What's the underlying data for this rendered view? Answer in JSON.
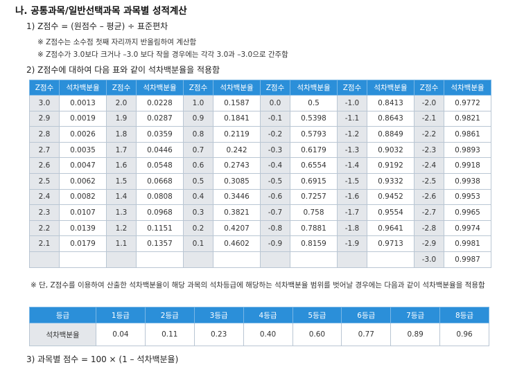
{
  "heading": "나. 공통과목/일반선택과목 과목별 성적계산",
  "formula": "1) Z점수 = (원점수 – 평균) ÷ 표준편차",
  "notes": [
    "※ Z점수는 소수점 첫째 자리까지 반올림하여 계산함",
    "※ Z점수가 3.0보다 크거나 –3.0 보다 작을 경우에는 각각 3.0과 –3.0으로 간주함"
  ],
  "subheading": "2) Z점수에 대하여 다음 표와 같이 석차백분율을 적용함",
  "ztable": {
    "z_header": "Z점수",
    "p_header": "석차백분율",
    "rows": [
      [
        "3.0",
        "0.0013",
        "2.0",
        "0.0228",
        "1.0",
        "0.1587",
        "0.0",
        "0.5",
        "-1.0",
        "0.8413",
        "-2.0",
        "0.9772"
      ],
      [
        "2.9",
        "0.0019",
        "1.9",
        "0.0287",
        "0.9",
        "0.1841",
        "-0.1",
        "0.5398",
        "-1.1",
        "0.8643",
        "-2.1",
        "0.9821"
      ],
      [
        "2.8",
        "0.0026",
        "1.8",
        "0.0359",
        "0.8",
        "0.2119",
        "-0.2",
        "0.5793",
        "-1.2",
        "0.8849",
        "-2.2",
        "0.9861"
      ],
      [
        "2.7",
        "0.0035",
        "1.7",
        "0.0446",
        "0.7",
        "0.242",
        "-0.3",
        "0.6179",
        "-1.3",
        "0.9032",
        "-2.3",
        "0.9893"
      ],
      [
        "2.6",
        "0.0047",
        "1.6",
        "0.0548",
        "0.6",
        "0.2743",
        "-0.4",
        "0.6554",
        "-1.4",
        "0.9192",
        "-2.4",
        "0.9918"
      ],
      [
        "2.5",
        "0.0062",
        "1.5",
        "0.0668",
        "0.5",
        "0.3085",
        "-0.5",
        "0.6915",
        "-1.5",
        "0.9332",
        "-2.5",
        "0.9938"
      ],
      [
        "2.4",
        "0.0082",
        "1.4",
        "0.0808",
        "0.4",
        "0.3446",
        "-0.6",
        "0.7257",
        "-1.6",
        "0.9452",
        "-2.6",
        "0.9953"
      ],
      [
        "2.3",
        "0.0107",
        "1.3",
        "0.0968",
        "0.3",
        "0.3821",
        "-0.7",
        "0.758",
        "-1.7",
        "0.9554",
        "-2.7",
        "0.9965"
      ],
      [
        "2.2",
        "0.0139",
        "1.2",
        "0.1151",
        "0.2",
        "0.4207",
        "-0.8",
        "0.7881",
        "-1.8",
        "0.9641",
        "-2.8",
        "0.9974"
      ],
      [
        "2.1",
        "0.0179",
        "1.1",
        "0.1357",
        "0.1",
        "0.4602",
        "-0.9",
        "0.8159",
        "-1.9",
        "0.9713",
        "-2.9",
        "0.9981"
      ],
      [
        "",
        "",
        "",
        "",
        "",
        "",
        "",
        "",
        "",
        "",
        "-3.0",
        "0.9987"
      ]
    ]
  },
  "note3": "※ 단, Z점수를 이용하여 산출한 석차백분율이 해당 과목의 석차등급에 해당하는 석차백분율 범위를 벗어날 경우에는 다음과 같이 석차백분율을 적용함",
  "grade_table": {
    "header": [
      "등급",
      "1등급",
      "2등급",
      "3등급",
      "4등급",
      "5등급",
      "6등급",
      "7등급",
      "8등급"
    ],
    "row_label": "석차백분율",
    "values": [
      "0.04",
      "0.11",
      "0.23",
      "0.40",
      "0.60",
      "0.77",
      "0.89",
      "0.96"
    ]
  },
  "footer": "3) 과목별 점수 = 100 × (1 – 석차백분율)"
}
